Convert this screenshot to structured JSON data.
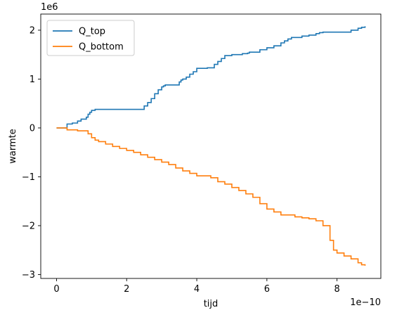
{
  "chart_data": {
    "type": "line",
    "title": "",
    "xlabel": "tijd",
    "ylabel": "warmte",
    "x_offset_label": "1e−10",
    "y_offset_label": "1e6",
    "xlim": [
      -0.45,
      9.25
    ],
    "ylim": [
      -3.08,
      2.33
    ],
    "x_ticks": [
      0,
      2,
      4,
      6,
      8
    ],
    "x_tick_labels": [
      "0",
      "2",
      "4",
      "6",
      "8"
    ],
    "y_ticks": [
      -3,
      -2,
      -1,
      0,
      1,
      2
    ],
    "y_tick_labels": [
      "−3",
      "−2",
      "−1",
      "0",
      "1",
      "2"
    ],
    "grid": false,
    "legend": "top-left",
    "series": [
      {
        "name": "Q_top",
        "color": "#1f77b4",
        "x": [
          0,
          0.3,
          0.45,
          0.5,
          0.6,
          0.7,
          0.85,
          0.9,
          0.95,
          1.0,
          1.1,
          2.5,
          2.6,
          2.7,
          2.8,
          2.9,
          3.0,
          3.05,
          3.1,
          3.5,
          3.55,
          3.6,
          3.7,
          3.8,
          3.9,
          4.0,
          4.3,
          4.5,
          4.6,
          4.7,
          4.8,
          5.0,
          5.3,
          5.45,
          5.5,
          5.8,
          6.0,
          6.2,
          6.4,
          6.5,
          6.6,
          6.7,
          7.0,
          7.2,
          7.4,
          7.5,
          7.6,
          8.4,
          8.6,
          8.7,
          8.8
        ],
        "values": [
          0,
          0.08,
          0.1,
          0.1,
          0.14,
          0.18,
          0.22,
          0.28,
          0.32,
          0.36,
          0.38,
          0.45,
          0.52,
          0.6,
          0.7,
          0.78,
          0.84,
          0.86,
          0.88,
          0.94,
          0.98,
          1.0,
          1.04,
          1.1,
          1.15,
          1.22,
          1.23,
          1.3,
          1.36,
          1.42,
          1.48,
          1.5,
          1.52,
          1.53,
          1.55,
          1.6,
          1.64,
          1.68,
          1.74,
          1.78,
          1.82,
          1.85,
          1.88,
          1.9,
          1.93,
          1.95,
          1.96,
          2.0,
          2.04,
          2.06,
          2.08
        ]
      },
      {
        "name": "Q_bottom",
        "color": "#ff7f0e",
        "x": [
          0,
          0.3,
          0.6,
          0.9,
          1.0,
          1.1,
          1.2,
          1.4,
          1.6,
          1.8,
          2.0,
          2.2,
          2.4,
          2.6,
          2.8,
          3.0,
          3.2,
          3.4,
          3.6,
          3.8,
          4.0,
          4.4,
          4.6,
          4.8,
          5.0,
          5.2,
          5.4,
          5.6,
          5.8,
          6.0,
          6.2,
          6.4,
          6.8,
          7.0,
          7.2,
          7.4,
          7.6,
          7.8,
          7.9,
          8.0,
          8.2,
          8.4,
          8.6,
          8.7,
          8.8
        ],
        "values": [
          0,
          -0.04,
          -0.06,
          -0.12,
          -0.2,
          -0.25,
          -0.28,
          -0.33,
          -0.38,
          -0.42,
          -0.46,
          -0.5,
          -0.55,
          -0.6,
          -0.65,
          -0.7,
          -0.75,
          -0.82,
          -0.88,
          -0.93,
          -0.98,
          -1.02,
          -1.1,
          -1.15,
          -1.22,
          -1.28,
          -1.35,
          -1.42,
          -1.55,
          -1.66,
          -1.72,
          -1.78,
          -1.82,
          -1.84,
          -1.86,
          -1.9,
          -2.0,
          -2.3,
          -2.5,
          -2.56,
          -2.62,
          -2.68,
          -2.76,
          -2.8,
          -2.82
        ]
      }
    ]
  }
}
